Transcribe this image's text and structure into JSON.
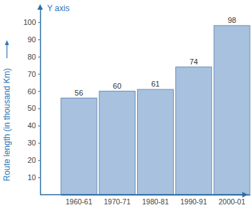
{
  "chart_data": {
    "type": "bar",
    "y_label": "Route length (in thousand Km)",
    "annotations": [
      "Y axis"
    ],
    "categories": [
      "1960-61",
      "1970-71",
      "1980-81",
      "1990-91",
      "2000-01"
    ],
    "values": [
      56,
      60,
      61,
      74,
      98
    ],
    "color": "#a7c1de",
    "ylim": [
      0,
      108
    ],
    "yticks": [
      10,
      20,
      30,
      40,
      50,
      60,
      70,
      80,
      90,
      100
    ],
    "data_labels": true
  }
}
